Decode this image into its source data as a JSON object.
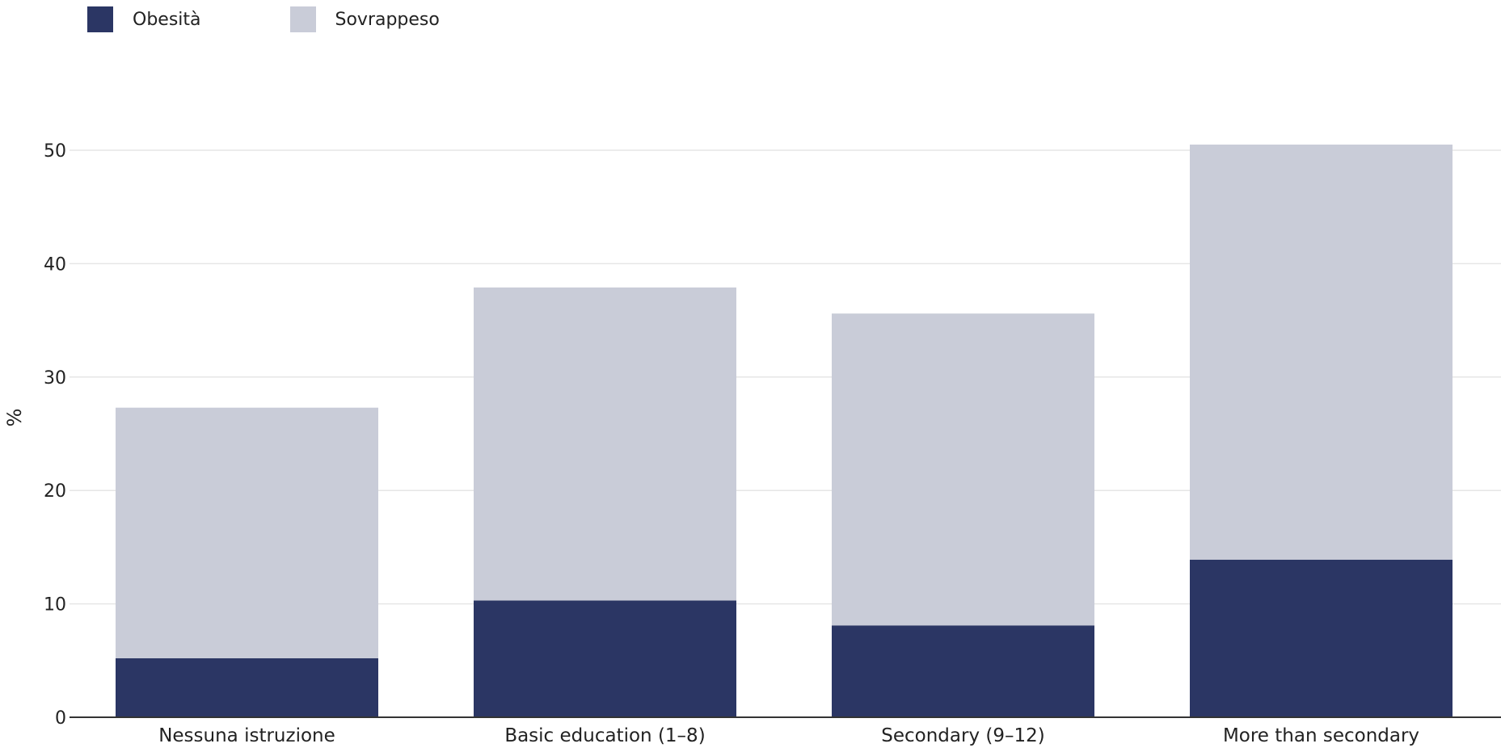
{
  "chart_data": {
    "type": "bar",
    "stacked": true,
    "categories": [
      "Nessuna istruzione",
      "Basic education (1–8)",
      "Secondary (9–12)",
      "More than secondary"
    ],
    "series": [
      {
        "name": "Obesità",
        "values": [
          5.2,
          10.3,
          8.1,
          13.9
        ],
        "color": "#2b3664"
      },
      {
        "name": "Sovrappeso",
        "values": [
          22.1,
          27.6,
          27.5,
          36.6
        ],
        "color": "#c9ccd8"
      }
    ],
    "ylabel": "%",
    "ylim": [
      0,
      55
    ],
    "yticks": [
      0,
      10,
      20,
      30,
      40,
      50
    ],
    "grid": true,
    "legend_position": "top-left"
  }
}
